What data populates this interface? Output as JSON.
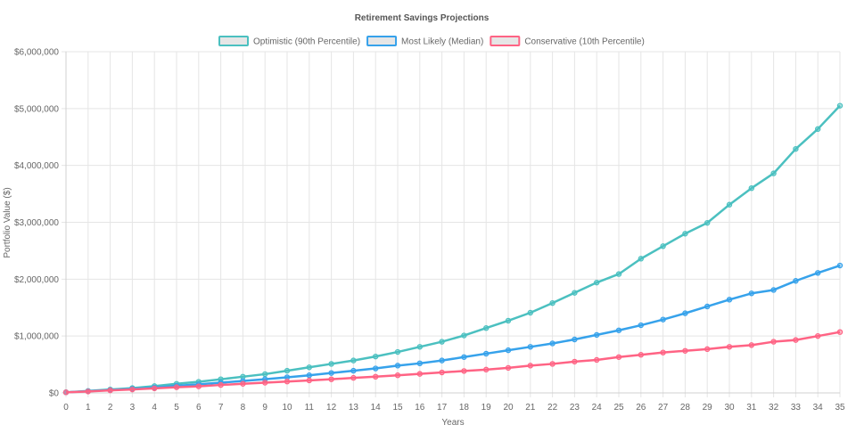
{
  "chart_data": {
    "type": "line",
    "title": "Retirement Savings Projections",
    "xlabel": "Years",
    "ylabel": "Portfolio Value ($)",
    "x": [
      0,
      1,
      2,
      3,
      4,
      5,
      6,
      7,
      8,
      9,
      10,
      11,
      12,
      13,
      14,
      15,
      16,
      17,
      18,
      19,
      20,
      21,
      22,
      23,
      24,
      25,
      26,
      27,
      28,
      29,
      30,
      31,
      32,
      33,
      34,
      35
    ],
    "ylim": [
      0,
      6000000
    ],
    "yticks": [
      0,
      1000000,
      2000000,
      3000000,
      4000000,
      5000000,
      6000000
    ],
    "ytick_labels": [
      "$0",
      "$1,000,000",
      "$2,000,000",
      "$3,000,000",
      "$4,000,000",
      "$5,000,000",
      "$6,000,000"
    ],
    "grid": true,
    "legend_position": "top",
    "series": [
      {
        "name": "Optimistic (90th Percentile)",
        "color": "#4bc0c0",
        "values": [
          10000,
          35000,
          60000,
          85000,
          120000,
          160000,
          195000,
          240000,
          285000,
          330000,
          390000,
          450000,
          510000,
          570000,
          640000,
          720000,
          810000,
          900000,
          1010000,
          1140000,
          1270000,
          1410000,
          1580000,
          1760000,
          1940000,
          2090000,
          2360000,
          2580000,
          2800000,
          2990000,
          3310000,
          3600000,
          3860000,
          4290000,
          4640000,
          5050000
        ]
      },
      {
        "name": "Most Likely (Median)",
        "color": "#36a2eb",
        "values": [
          10000,
          30000,
          50000,
          70000,
          95000,
          125000,
          150000,
          180000,
          210000,
          240000,
          275000,
          310000,
          350000,
          390000,
          430000,
          480000,
          520000,
          570000,
          630000,
          690000,
          750000,
          810000,
          870000,
          940000,
          1020000,
          1100000,
          1190000,
          1290000,
          1400000,
          1520000,
          1640000,
          1750000,
          1810000,
          1970000,
          2110000,
          2240000
        ]
      },
      {
        "name": "Conservative (10th Percentile)",
        "color": "#ff6384",
        "values": [
          10000,
          25000,
          45000,
          60000,
          80000,
          100000,
          115000,
          140000,
          160000,
          180000,
          200000,
          220000,
          240000,
          265000,
          285000,
          310000,
          335000,
          360000,
          385000,
          410000,
          440000,
          480000,
          510000,
          550000,
          580000,
          630000,
          670000,
          710000,
          740000,
          770000,
          810000,
          840000,
          900000,
          930000,
          1000000,
          1070000
        ]
      }
    ]
  }
}
